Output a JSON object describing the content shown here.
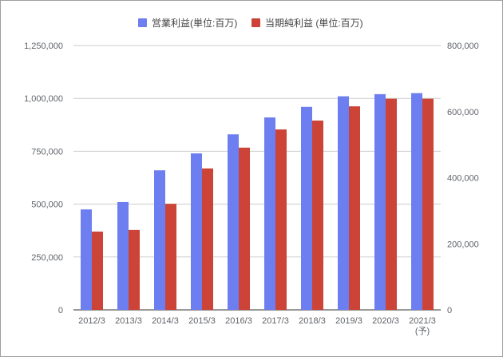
{
  "chart_data": {
    "type": "bar",
    "categories": [
      "2012/3",
      "2013/3",
      "2014/3",
      "2015/3",
      "2016/3",
      "2017/3",
      "2018/3",
      "2019/3",
      "2020/3",
      "2021/3"
    ],
    "category_sublabels": [
      "",
      "",
      "",
      "",
      "",
      "",
      "",
      "",
      "",
      "(予)"
    ],
    "series": [
      {
        "name": "営業利益(単位:百万)",
        "axis": "left",
        "color": "#6d7ff0",
        "values": [
          475000,
          510000,
          660000,
          740000,
          830000,
          910000,
          960000,
          1010000,
          1020000,
          1025000
        ]
      },
      {
        "name": "当期純利益 (単位:百万)",
        "axis": "right",
        "color": "#cc4437",
        "values": [
          237000,
          242000,
          321000,
          428000,
          491000,
          546000,
          573000,
          616000,
          639000,
          639000
        ]
      }
    ],
    "y_left": {
      "min": 0,
      "max": 1250000,
      "ticks": [
        0,
        250000,
        500000,
        750000,
        1000000,
        1250000
      ],
      "tick_labels": [
        "0",
        "250,000",
        "500,000",
        "750,000",
        "1,000,000",
        "1,250,000"
      ]
    },
    "y_right": {
      "min": 0,
      "max": 800000,
      "ticks": [
        0,
        200000,
        400000,
        600000,
        800000
      ],
      "tick_labels": [
        "0",
        "200,000",
        "400,000",
        "600,000",
        "800,000"
      ]
    },
    "grid": true,
    "legend_position": "top"
  }
}
